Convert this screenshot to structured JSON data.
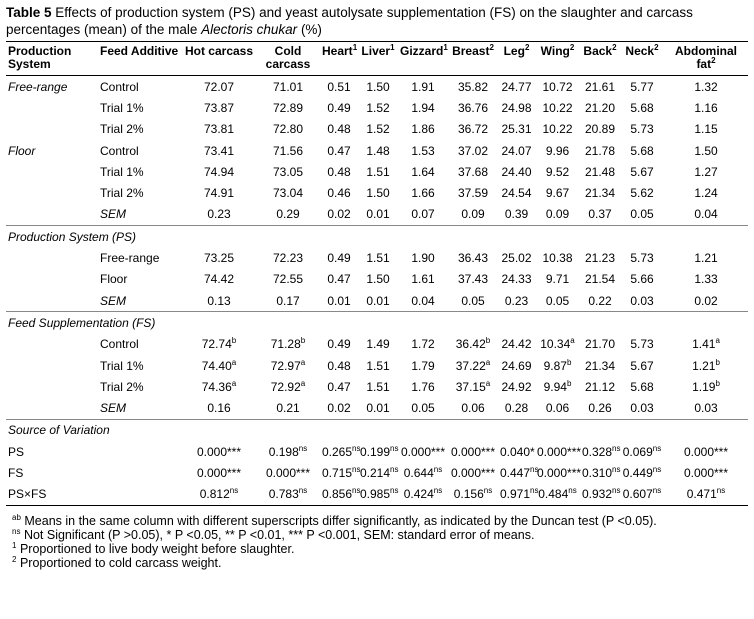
{
  "title": {
    "label": "Table 5",
    "text_before": "Effects of production system (PS) and yeast autolysate supplementation (FS) on the slaughter and carcass percentages (mean) of the male",
    "italic": "Alectoris chukar",
    "text_after": "(%)"
  },
  "table": {
    "header": [
      {
        "text": "Production System"
      },
      {
        "text": "Feed Additive"
      },
      {
        "text": "Hot carcass"
      },
      {
        "text": "Cold carcass"
      },
      {
        "text": "Heart",
        "sup": "1"
      },
      {
        "text": "Liver",
        "sup": "1"
      },
      {
        "text": "Gizzard",
        "sup": "1"
      },
      {
        "text": "Breast",
        "sup": "2"
      },
      {
        "text": "Leg",
        "sup": "2"
      },
      {
        "text": "Wing",
        "sup": "2"
      },
      {
        "text": "Back",
        "sup": "2"
      },
      {
        "text": "Neck",
        "sup": "2"
      },
      {
        "text": "Abdominal fat",
        "sup": "2"
      }
    ],
    "sections": [
      {
        "groups": [
          {
            "label": "Free-range",
            "rows": [
              [
                "Control",
                "72.07",
                "71.01",
                "0.51",
                "1.50",
                "1.91",
                "35.82",
                "24.77",
                "10.72",
                "21.61",
                "5.77",
                "1.32"
              ],
              [
                "Trial 1%",
                "73.87",
                "72.89",
                "0.49",
                "1.52",
                "1.94",
                "36.76",
                "24.98",
                "10.22",
                "21.20",
                "5.68",
                "1.16"
              ],
              [
                "Trial 2%",
                "73.81",
                "72.80",
                "0.48",
                "1.52",
                "1.86",
                "36.72",
                "25.31",
                "10.22",
                "20.89",
                "5.73",
                "1.15"
              ]
            ]
          },
          {
            "label": "Floor",
            "rows": [
              [
                "Control",
                "73.41",
                "71.56",
                "0.47",
                "1.48",
                "1.53",
                "37.02",
                "24.07",
                "9.96",
                "21.78",
                "5.68",
                "1.50"
              ],
              [
                "Trial 1%",
                "74.94",
                "73.05",
                "0.48",
                "1.51",
                "1.64",
                "37.68",
                "24.40",
                "9.52",
                "21.48",
                "5.67",
                "1.27"
              ],
              [
                "Trial 2%",
                "74.91",
                "73.04",
                "0.46",
                "1.50",
                "1.66",
                "37.59",
                "24.54",
                "9.67",
                "21.34",
                "5.62",
                "1.24"
              ]
            ]
          }
        ],
        "sem": {
          "label": "SEM",
          "values": [
            "0.23",
            "0.29",
            "0.02",
            "0.01",
            "0.07",
            "0.09",
            "0.39",
            "0.09",
            "0.37",
            "0.05",
            "0.04"
          ]
        }
      },
      {
        "title": "Production System (PS)",
        "rows": [
          [
            "Free-range",
            "73.25",
            "72.23",
            "0.49",
            "1.51",
            "1.90",
            "36.43",
            "25.02",
            "10.38",
            "21.23",
            "5.73",
            "1.21"
          ],
          [
            "Floor",
            "74.42",
            "72.55",
            "0.47",
            "1.50",
            "1.61",
            "37.43",
            "24.33",
            "9.71",
            "21.54",
            "5.66",
            "1.33"
          ]
        ],
        "sem": {
          "label": "SEM",
          "values": [
            "0.13",
            "0.17",
            "0.01",
            "0.01",
            "0.04",
            "0.05",
            "0.23",
            "0.05",
            "0.22",
            "0.03",
            "0.02"
          ]
        }
      },
      {
        "title": "Feed Supplementation (FS)",
        "rows": [
          [
            "Control",
            {
              "text": "72.74",
              "sup": "b"
            },
            {
              "text": "71.28",
              "sup": "b"
            },
            "0.49",
            "1.49",
            "1.72",
            {
              "text": "36.42",
              "sup": "b"
            },
            "24.42",
            {
              "text": "10.34",
              "sup": "a"
            },
            "21.70",
            "5.73",
            {
              "text": "1.41",
              "sup": "a"
            }
          ],
          [
            "Trial 1%",
            {
              "text": "74.40",
              "sup": "a"
            },
            {
              "text": "72.97",
              "sup": "a"
            },
            "0.48",
            "1.51",
            "1.79",
            {
              "text": "37.22",
              "sup": "a"
            },
            "24.69",
            {
              "text": "9.87",
              "sup": "b"
            },
            "21.34",
            "5.67",
            {
              "text": "1.21",
              "sup": "b"
            }
          ],
          [
            "Trial 2%",
            {
              "text": "74.36",
              "sup": "a"
            },
            {
              "text": "72.92",
              "sup": "a"
            },
            "0.47",
            "1.51",
            "1.76",
            {
              "text": "37.15",
              "sup": "a"
            },
            "24.92",
            {
              "text": "9.94",
              "sup": "b"
            },
            "21.12",
            "5.68",
            {
              "text": "1.19",
              "sup": "b"
            }
          ]
        ],
        "sem": {
          "label": "SEM",
          "values": [
            "0.16",
            "0.21",
            "0.02",
            "0.01",
            "0.05",
            "0.06",
            "0.28",
            "0.06",
            "0.26",
            "0.03",
            "0.03"
          ]
        }
      },
      {
        "title": "Source of Variation",
        "source_rows": [
          [
            "PS",
            "0.000***",
            {
              "text": "0.198",
              "sup": "ns"
            },
            {
              "text": "0.265",
              "sup": "ns"
            },
            {
              "text": "0.199",
              "sup": "ns"
            },
            "0.000***",
            "0.000***",
            "0.040*",
            "0.000***",
            {
              "text": "0.328",
              "sup": "ns"
            },
            {
              "text": "0.069",
              "sup": "ns"
            },
            "0.000***"
          ],
          [
            "FS",
            "0.000***",
            "0.000***",
            {
              "text": "0.715",
              "sup": "ns"
            },
            {
              "text": "0.214",
              "sup": "ns"
            },
            {
              "text": "0.644",
              "sup": "ns"
            },
            "0.000***",
            {
              "text": "0.447",
              "sup": "ns"
            },
            "0.000***",
            {
              "text": "0.310",
              "sup": "ns"
            },
            {
              "text": "0.449",
              "sup": "ns"
            },
            "0.000***"
          ],
          [
            "PS×FS",
            {
              "text": "0.812",
              "sup": "ns"
            },
            {
              "text": "0.783",
              "sup": "ns"
            },
            {
              "text": "0.856",
              "sup": "ns"
            },
            {
              "text": "0.985",
              "sup": "ns"
            },
            {
              "text": "0.424",
              "sup": "ns"
            },
            {
              "text": "0.156",
              "sup": "ns"
            },
            {
              "text": "0.971",
              "sup": "ns"
            },
            {
              "text": "0.484",
              "sup": "ns"
            },
            {
              "text": "0.932",
              "sup": "ns"
            },
            {
              "text": "0.607",
              "sup": "ns"
            },
            {
              "text": "0.471",
              "sup": "ns"
            }
          ]
        ]
      }
    ]
  },
  "footnotes": [
    {
      "sup": "ab",
      "text": "Means in the same column with different superscripts differ significantly, as indicated by the Duncan test (P <0.05)."
    },
    {
      "sup": "ns",
      "text": "Not Significant (P >0.05), * P <0.05, ** P <0.01, *** P <0.001, SEM: standard error of means."
    },
    {
      "sup": "1",
      "text": "Proportioned to live body weight before slaughter."
    },
    {
      "sup": "2",
      "text": "Proportioned to cold carcass weight."
    }
  ]
}
